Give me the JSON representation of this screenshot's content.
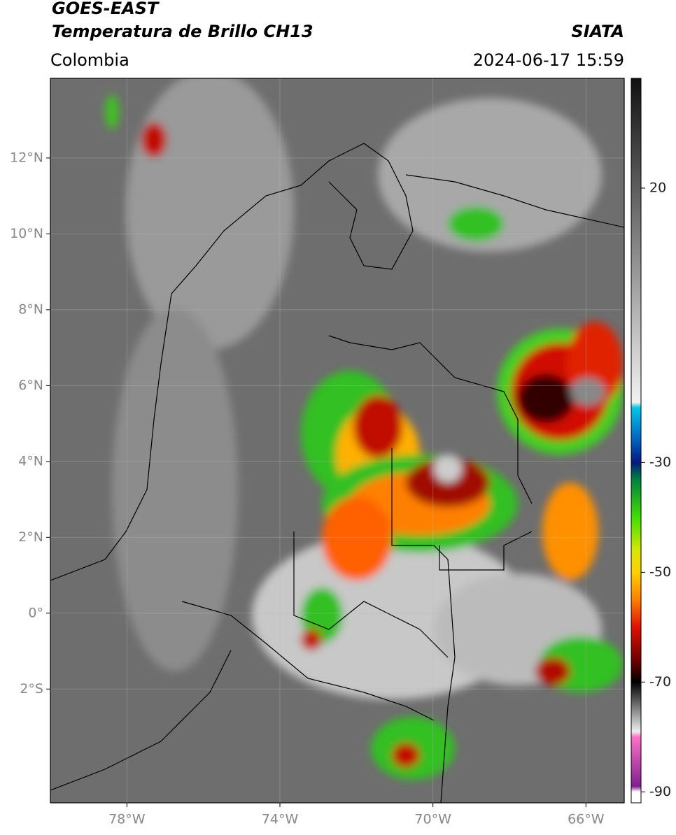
{
  "header": {
    "title": "GOES-EAST",
    "subtitle": "Temperatura de Brillo CH13",
    "source": "SIATA",
    "region": "Colombia",
    "timestamp": "2024-06-17 15:59"
  },
  "map": {
    "xlim": [
      -80,
      -65
    ],
    "ylim": [
      -5,
      14.1
    ],
    "xticks": [
      {
        "value": -78,
        "label": "78°W"
      },
      {
        "value": -74,
        "label": "74°W"
      },
      {
        "value": -70,
        "label": "70°W"
      },
      {
        "value": -66,
        "label": "66°W"
      }
    ],
    "yticks": [
      {
        "value": 12,
        "label": "12°N"
      },
      {
        "value": 10,
        "label": "10°N"
      },
      {
        "value": 8,
        "label": "8°N"
      },
      {
        "value": 6,
        "label": "6°N"
      },
      {
        "value": 4,
        "label": "4°N"
      },
      {
        "value": 2,
        "label": "2°N"
      },
      {
        "value": 0,
        "label": "0°"
      },
      {
        "value": -2,
        "label": "2°S"
      }
    ],
    "grid": true
  },
  "colorbar": {
    "lim": [
      -92,
      40
    ],
    "ticks": [
      20,
      -30,
      -50,
      -70,
      -90
    ],
    "stops": [
      {
        "value": 40,
        "color": "#111111"
      },
      {
        "value": -19,
        "color": "#f2f2f2"
      },
      {
        "value": -20,
        "color": "#00c8e8"
      },
      {
        "value": -26,
        "color": "#0060c0"
      },
      {
        "value": -30,
        "color": "#001a80"
      },
      {
        "value": -33,
        "color": "#008040"
      },
      {
        "value": -40,
        "color": "#40e000"
      },
      {
        "value": -46,
        "color": "#d8e800"
      },
      {
        "value": -50,
        "color": "#ffd000"
      },
      {
        "value": -55,
        "color": "#ff8000"
      },
      {
        "value": -60,
        "color": "#e01000"
      },
      {
        "value": -66,
        "color": "#700000"
      },
      {
        "value": -70,
        "color": "#000000"
      },
      {
        "value": -76,
        "color": "#a0a0a0"
      },
      {
        "value": -79,
        "color": "#eeeeee"
      },
      {
        "value": -80,
        "color": "#ff70c8"
      },
      {
        "value": -89,
        "color": "#802090"
      },
      {
        "value": -90,
        "color": "#ffffff"
      }
    ]
  }
}
